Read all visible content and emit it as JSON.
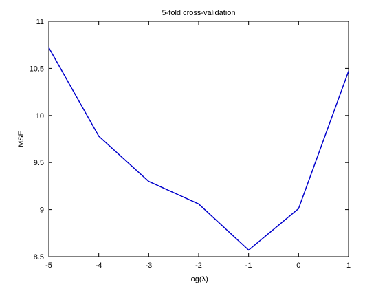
{
  "chart_data": {
    "type": "line",
    "title": "5-fold cross-validation",
    "xlabel": "log(λ)",
    "ylabel": "MSE",
    "xlim": [
      -5,
      1
    ],
    "ylim": [
      8.5,
      11
    ],
    "xticks": [
      -5,
      -4,
      -3,
      -2,
      -1,
      0,
      1
    ],
    "yticks": [
      8.5,
      9,
      9.5,
      10,
      10.5,
      11
    ],
    "xtick_labels": [
      "-5",
      "-4",
      "-3",
      "-2",
      "-1",
      "0",
      "1"
    ],
    "ytick_labels": [
      "8.5",
      "9",
      "9.5",
      "10",
      "10.5",
      "11"
    ],
    "grid": false,
    "line_color": "#0000cc",
    "series": [
      {
        "x": [
          -5,
          -4,
          -3,
          -2,
          -1,
          0,
          1
        ],
        "y": [
          10.72,
          9.78,
          9.3,
          9.06,
          8.57,
          9.01,
          10.47
        ]
      }
    ]
  }
}
